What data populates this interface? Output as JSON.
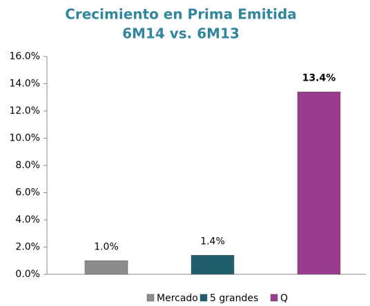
{
  "chart_data": {
    "type": "bar",
    "title": "Crecimiento en Prima Emitida",
    "subtitle": "6M14 vs. 6M13",
    "series": [
      {
        "name": "Mercado",
        "color": "#8c8c8c",
        "values": [
          1.0
        ],
        "value_labels": [
          "1.0%"
        ]
      },
      {
        "name": "5 grandes",
        "color": "#215e6c",
        "values": [
          1.4
        ],
        "value_labels": [
          "1.4%"
        ]
      },
      {
        "name": "Q",
        "color": "#9b3b8e",
        "values": [
          13.4
        ],
        "value_labels": [
          "13.4%"
        ]
      }
    ],
    "ylim": [
      0,
      16
    ],
    "yticks": [
      {
        "value": 0,
        "label": "0.0%"
      },
      {
        "value": 2,
        "label": "2.0%"
      },
      {
        "value": 4,
        "label": "4.0%"
      },
      {
        "value": 6,
        "label": "6.0%"
      },
      {
        "value": 8,
        "label": "8.0%"
      },
      {
        "value": 10,
        "label": "10.0%"
      },
      {
        "value": 12,
        "label": "12.0%"
      },
      {
        "value": 14,
        "label": "14.0%"
      },
      {
        "value": 16,
        "label": "16.0%"
      }
    ],
    "grid": false,
    "legend": "bottom"
  }
}
